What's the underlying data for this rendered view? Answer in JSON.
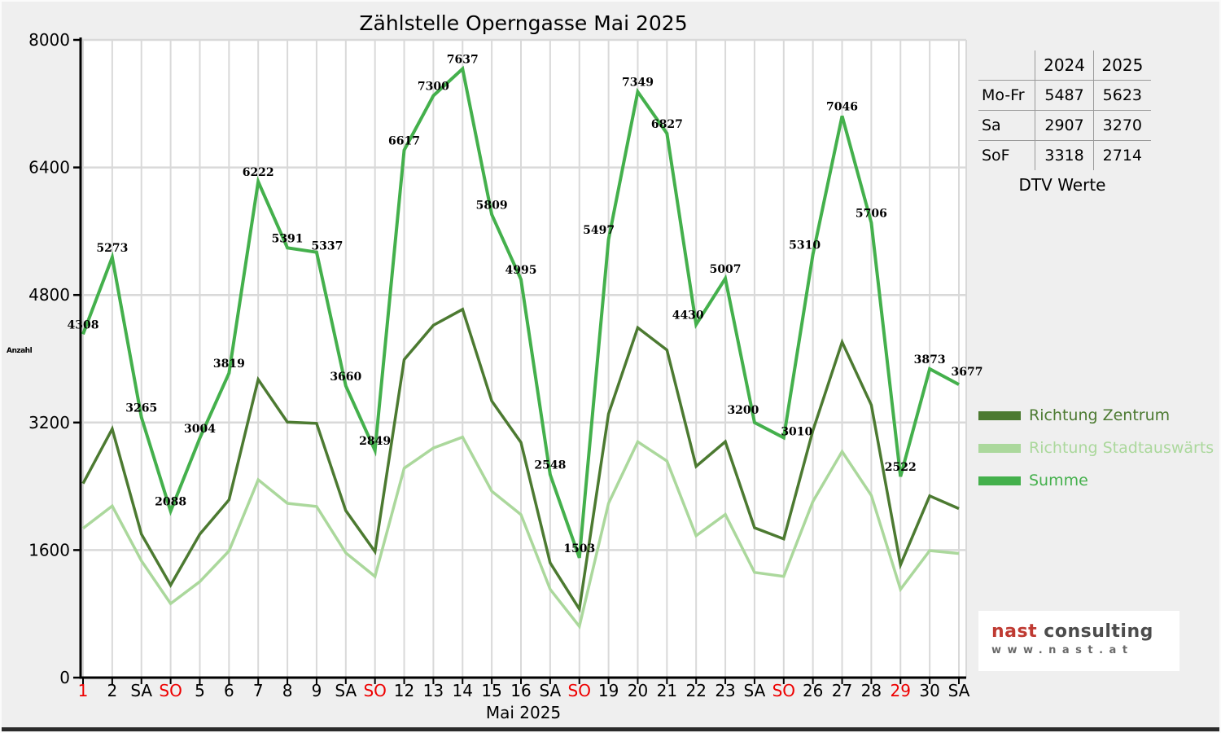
{
  "title": "Zählstelle Operngasse Mai 2025",
  "chart_data": {
    "type": "line",
    "x_tick_labels": [
      "1",
      "2",
      "SA",
      "SO",
      "5",
      "6",
      "7",
      "8",
      "9",
      "SA",
      "SO",
      "12",
      "13",
      "14",
      "15",
      "16",
      "SA",
      "SO",
      "19",
      "20",
      "21",
      "22",
      "23",
      "SA",
      "SO",
      "26",
      "27",
      "28",
      "29",
      "30",
      "SA"
    ],
    "x_tick_red_indices": [
      0,
      3,
      10,
      17,
      24,
      28
    ],
    "xlabel": "Mai 2025",
    "ylabel": "Anzahl",
    "ylim": [
      0,
      8000
    ],
    "yticks": [
      0,
      1600,
      3200,
      4800,
      6400,
      8000
    ],
    "grid": true,
    "legend_position": "right",
    "series": [
      {
        "name": "Richtung Zentrum",
        "color": "#4c7a31",
        "values": [
          2435,
          3120,
          1800,
          1160,
          1800,
          2230,
          3740,
          3205,
          3190,
          2095,
          1580,
          3990,
          4420,
          4620,
          3470,
          2950,
          1440,
          860,
          3310,
          4390,
          4110,
          2650,
          2960,
          1880,
          1740,
          3100,
          4210,
          3420,
          1415,
          2280,
          2120
        ],
        "data_labels": false,
        "values_estimated": true
      },
      {
        "name": "Richtung Stadtauswärts",
        "color": "#abd89c",
        "values": [
          1873,
          2153,
          1465,
          928,
          1204,
          1589,
          2482,
          2186,
          2147,
          1565,
          1269,
          2627,
          2880,
          3017,
          2339,
          2045,
          1108,
          643,
          2187,
          2959,
          2717,
          1780,
          2047,
          1320,
          1270,
          2210,
          2836,
          2286,
          1107,
          1593,
          1557
        ],
        "data_labels": false,
        "values_estimated": true
      },
      {
        "name": "Summe",
        "color": "#44b04c",
        "values": [
          4308,
          5273,
          3265,
          2088,
          3004,
          3819,
          6222,
          5391,
          5337,
          3660,
          2849,
          6617,
          7300,
          7637,
          5809,
          4995,
          2548,
          1503,
          5497,
          7349,
          6827,
          4430,
          5007,
          3200,
          3010,
          5310,
          7046,
          5706,
          2522,
          3873,
          3677
        ],
        "data_labels": true,
        "values_estimated": false
      }
    ]
  },
  "table": {
    "col_headers": [
      "",
      "2024",
      "2025"
    ],
    "rows": [
      {
        "label": "Mo-Fr",
        "v2024": "5487",
        "v2025": "5623"
      },
      {
        "label": "Sa",
        "v2024": "2907",
        "v2025": "3270"
      },
      {
        "label": "SoF",
        "v2024": "3318",
        "v2025": "2714"
      }
    ],
    "caption": "DTV Werte"
  },
  "logo": {
    "brand_primary": "nast",
    "brand_secondary": "consulting",
    "url_text": "www.nast.at",
    "primary_color": "#bf3a32",
    "secondary_color": "#4c4c4c"
  },
  "colors": {
    "background": "#efefef",
    "plot_background": "#ffffff",
    "grid": "#d9d9d9",
    "axis": "#000000",
    "tick_label": "#000000",
    "tick_label_red": "#ee0000",
    "data_label": "#000000"
  }
}
